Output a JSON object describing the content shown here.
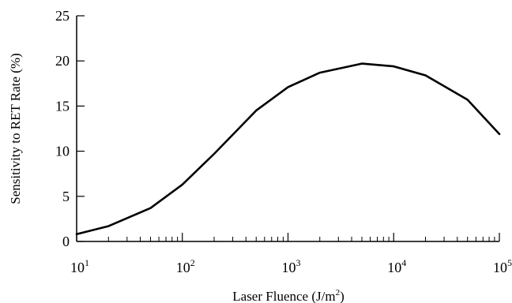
{
  "chart_data": {
    "type": "line",
    "title": "",
    "xlabel_main": "Laser Fluence (J/m",
    "xlabel_sup": "2",
    "xlabel_tail": ")",
    "ylabel": "Sensitivity to RET Rate (%)",
    "xscale": "log",
    "xlim": [
      10,
      100000
    ],
    "ylim": [
      0,
      25
    ],
    "x_ticks": [
      {
        "base": "10",
        "exp": "1",
        "value": 10
      },
      {
        "base": "10",
        "exp": "2",
        "value": 100
      },
      {
        "base": "10",
        "exp": "3",
        "value": 1000
      },
      {
        "base": "10",
        "exp": "4",
        "value": 10000
      },
      {
        "base": "10",
        "exp": "5",
        "value": 100000
      }
    ],
    "y_ticks": [
      "0",
      "5",
      "10",
      "15",
      "20",
      "25"
    ],
    "grid": false,
    "x": [
      10,
      20,
      50,
      100,
      200,
      500,
      1000,
      2000,
      5000,
      10000,
      20000,
      50000,
      100000
    ],
    "y": [
      0.8,
      1.7,
      3.7,
      6.3,
      9.7,
      14.5,
      17.1,
      18.7,
      19.7,
      19.4,
      18.4,
      15.7,
      11.9
    ]
  }
}
